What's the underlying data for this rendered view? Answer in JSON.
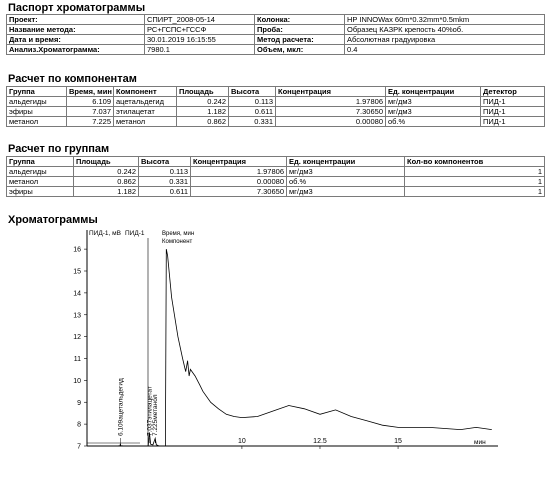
{
  "sections": {
    "passport": "Паспорт хроматограммы",
    "components": "Расчет по компонентам",
    "groups": "Расчет по группам",
    "chromatograms": "Хроматограммы"
  },
  "passport": {
    "project_label": "Проект:",
    "project": "СПИРТ_2008-05-14",
    "column_label": "Колонка:",
    "column": "HP INNOWax 60m*0.32mm*0.5mkm",
    "method_label": "Название метода:",
    "method": "РС+ГСПС+ГССФ",
    "sample_label": "Проба:",
    "sample": "Образец КАЗРК крепость 40%об.",
    "datetime_label": "Дата и время:",
    "datetime": "30.01.2019 16:15:55",
    "calc_label": "Метод расчета:",
    "calc": "Абсолютная градуировка",
    "analysis_label": "Анализ.Хроматограмма:",
    "analysis": "7980.1",
    "volume_label": "Объем, мкл:",
    "volume": "0.4"
  },
  "components": {
    "headers": [
      "Группа",
      "Время, мин",
      "Компонент",
      "Площадь",
      "Высота",
      "Концентрация",
      "Ед. концентрации",
      "Детектор"
    ],
    "rows": [
      [
        "альдегиды",
        "6.109",
        "ацетальдегид",
        "0.242",
        "0.113",
        "1.97806",
        "мг/дм3",
        "ПИД-1"
      ],
      [
        "эфиры",
        "7.037",
        "этилацетат",
        "1.182",
        "0.611",
        "7.30650",
        "мг/дм3",
        "ПИД-1"
      ],
      [
        "метанол",
        "7.225",
        "метанол",
        "0.862",
        "0.331",
        "0.00080",
        "об.%",
        "ПИД-1"
      ]
    ]
  },
  "groups": {
    "headers": [
      "Группа",
      "Площадь",
      "Высота",
      "Концентрация",
      "Ед. концентрации",
      "Кол-во компонентов"
    ],
    "rows": [
      [
        "альдегиды",
        "0.242",
        "0.113",
        "1.97806",
        "мг/дм3",
        "1"
      ],
      [
        "метанол",
        "0.862",
        "0.331",
        "0.00080",
        "об.%",
        "1"
      ],
      [
        "эфиры",
        "1.182",
        "0.611",
        "7.30650",
        "мг/дм3",
        "1"
      ]
    ]
  },
  "chart_data": {
    "type": "line",
    "ylabel": "ПИД-1, мВ",
    "series_label": "ПИД-1",
    "legend": [
      "Время, мин",
      "Компонент"
    ],
    "xunit": "мин",
    "xlim": [
      5.2,
      18.2
    ],
    "ylim": [
      7,
      16.6
    ],
    "xticks": [
      "10",
      "12.5",
      "15"
    ],
    "yticks": [
      "16",
      "15",
      "14",
      "13",
      "12",
      "11",
      "10",
      "9",
      "8",
      "7"
    ],
    "grid": false,
    "series": [
      {
        "x": [
          5.2,
          6.0,
          6.1,
          6.109,
          6.12,
          6.25,
          7.0,
          7.037,
          7.08,
          7.15,
          7.225,
          7.26,
          7.35,
          7.55,
          7.58,
          7.62,
          7.75,
          7.95,
          8.1,
          8.2,
          8.26,
          8.31,
          8.35,
          8.5,
          8.65,
          8.75,
          9.0,
          9.25,
          9.5,
          9.75,
          10.0,
          10.5,
          11.0,
          11.5,
          12.0,
          12.5,
          13.0,
          13.5,
          14.0,
          14.5,
          15.0,
          15.5,
          16.0,
          16.5,
          17.0,
          17.5,
          18.0
        ],
        "y": [
          7.0,
          7.0,
          7.02,
          7.12,
          7.02,
          7.0,
          7.0,
          7.62,
          7.08,
          7.05,
          7.35,
          7.06,
          7.0,
          7.0,
          16.0,
          15.7,
          13.8,
          12.0,
          11.0,
          10.4,
          10.9,
          10.2,
          10.5,
          10.2,
          9.8,
          9.5,
          9.0,
          8.7,
          8.45,
          8.35,
          8.3,
          8.35,
          8.6,
          8.85,
          8.7,
          8.45,
          8.65,
          8.35,
          8.15,
          7.95,
          7.85,
          7.85,
          7.85,
          7.8,
          7.75,
          7.85,
          7.75
        ]
      }
    ],
    "peak_labels": [
      {
        "time": "6.109",
        "name": "ацетальдегид"
      },
      {
        "time": "7.037",
        "name": "этилацетат"
      },
      {
        "time": "7.225",
        "name": "метанол"
      }
    ]
  }
}
